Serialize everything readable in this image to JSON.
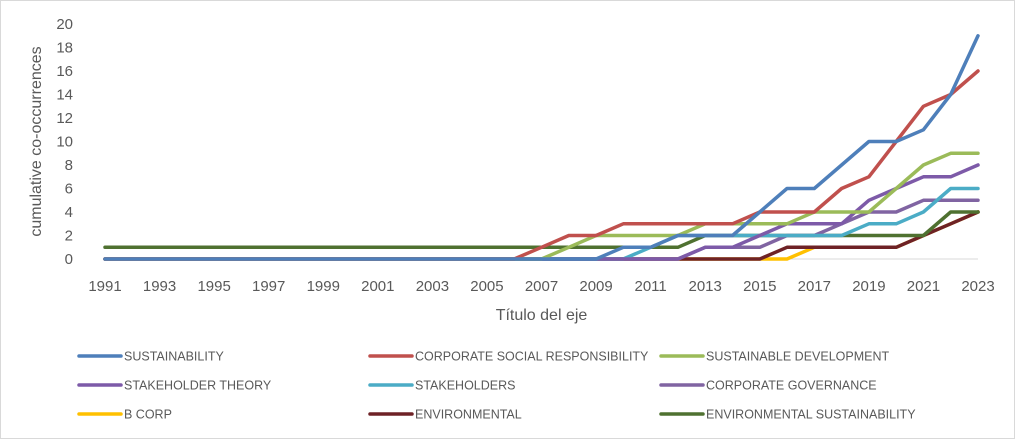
{
  "chart_data": {
    "type": "line",
    "title": "",
    "xlabel": "Título del eje",
    "ylabel": "cumulative co-occurrences",
    "x": [
      1991,
      1992,
      1993,
      1994,
      1995,
      1996,
      1997,
      1998,
      1999,
      2000,
      2001,
      2002,
      2003,
      2004,
      2005,
      2006,
      2007,
      2008,
      2009,
      2010,
      2011,
      2012,
      2013,
      2014,
      2015,
      2016,
      2017,
      2018,
      2019,
      2020,
      2021,
      2022,
      2023
    ],
    "x_tick_labels": [
      "1991",
      "1993",
      "1995",
      "1997",
      "1999",
      "2001",
      "2003",
      "2005",
      "2007",
      "2009",
      "2011",
      "2013",
      "2015",
      "2017",
      "2019",
      "2021",
      "2023"
    ],
    "y_tick_labels": [
      "0",
      "2",
      "4",
      "6",
      "8",
      "10",
      "12",
      "14",
      "16",
      "18",
      "20"
    ],
    "ylim": [
      0,
      20
    ],
    "grid": false,
    "legend_position": "bottom",
    "series": [
      {
        "name": "SUSTAINABILITY",
        "color": "#4e7fba",
        "values": [
          0,
          0,
          0,
          0,
          0,
          0,
          0,
          0,
          0,
          0,
          0,
          0,
          0,
          0,
          0,
          0,
          0,
          0,
          0,
          1,
          1,
          2,
          2,
          2,
          4,
          6,
          6,
          8,
          10,
          10,
          11,
          14,
          19
        ]
      },
      {
        "name": "CORPORATE SOCIAL RESPONSIBILITY",
        "color": "#c0504d",
        "values": [
          0,
          0,
          0,
          0,
          0,
          0,
          0,
          0,
          0,
          0,
          0,
          0,
          0,
          0,
          0,
          0,
          1,
          2,
          2,
          3,
          3,
          3,
          3,
          3,
          4,
          4,
          4,
          6,
          7,
          10,
          13,
          14,
          16
        ]
      },
      {
        "name": "SUSTAINABLE DEVELOPMENT",
        "color": "#9bbb59",
        "values": [
          0,
          0,
          0,
          0,
          0,
          0,
          0,
          0,
          0,
          0,
          0,
          0,
          0,
          0,
          0,
          0,
          0,
          1,
          2,
          2,
          2,
          2,
          3,
          3,
          3,
          3,
          4,
          4,
          4,
          6,
          8,
          9,
          9
        ]
      },
      {
        "name": "STAKEHOLDER THEORY",
        "color": "#7d5aa8",
        "values": [
          0,
          0,
          0,
          0,
          0,
          0,
          0,
          0,
          0,
          0,
          0,
          0,
          0,
          0,
          0,
          0,
          0,
          0,
          0,
          0,
          0,
          0,
          1,
          1,
          2,
          3,
          3,
          3,
          5,
          6,
          7,
          7,
          8
        ]
      },
      {
        "name": "STAKEHOLDERS",
        "color": "#4bacc6",
        "values": [
          0,
          0,
          0,
          0,
          0,
          0,
          0,
          0,
          0,
          0,
          0,
          0,
          0,
          0,
          0,
          0,
          0,
          0,
          0,
          0,
          1,
          2,
          2,
          2,
          2,
          2,
          2,
          2,
          3,
          3,
          4,
          6,
          6
        ]
      },
      {
        "name": "CORPORATE GOVERNANCE",
        "color": "#8064a2",
        "values": [
          0,
          0,
          0,
          0,
          0,
          0,
          0,
          0,
          0,
          0,
          0,
          0,
          0,
          0,
          0,
          0,
          0,
          0,
          0,
          0,
          0,
          0,
          1,
          1,
          1,
          2,
          2,
          3,
          4,
          4,
          5,
          5,
          5
        ]
      },
      {
        "name": "B CORP",
        "color": "#ffc000",
        "values": [
          0,
          0,
          0,
          0,
          0,
          0,
          0,
          0,
          0,
          0,
          0,
          0,
          0,
          0,
          0,
          0,
          0,
          0,
          0,
          0,
          0,
          0,
          0,
          0,
          0,
          0,
          1,
          1,
          1,
          1,
          2,
          3,
          4
        ]
      },
      {
        "name": "ENVIRONMENTAL",
        "color": "#6e2226",
        "values": [
          0,
          0,
          0,
          0,
          0,
          0,
          0,
          0,
          0,
          0,
          0,
          0,
          0,
          0,
          0,
          0,
          0,
          0,
          0,
          0,
          0,
          0,
          0,
          0,
          0,
          1,
          1,
          1,
          1,
          1,
          2,
          3,
          4
        ]
      },
      {
        "name": "ENVIRONMENTAL SUSTAINABILITY",
        "color": "#4f7130",
        "values": [
          1,
          1,
          1,
          1,
          1,
          1,
          1,
          1,
          1,
          1,
          1,
          1,
          1,
          1,
          1,
          1,
          1,
          1,
          1,
          1,
          1,
          1,
          2,
          2,
          2,
          2,
          2,
          2,
          2,
          2,
          2,
          4,
          4
        ]
      }
    ]
  }
}
